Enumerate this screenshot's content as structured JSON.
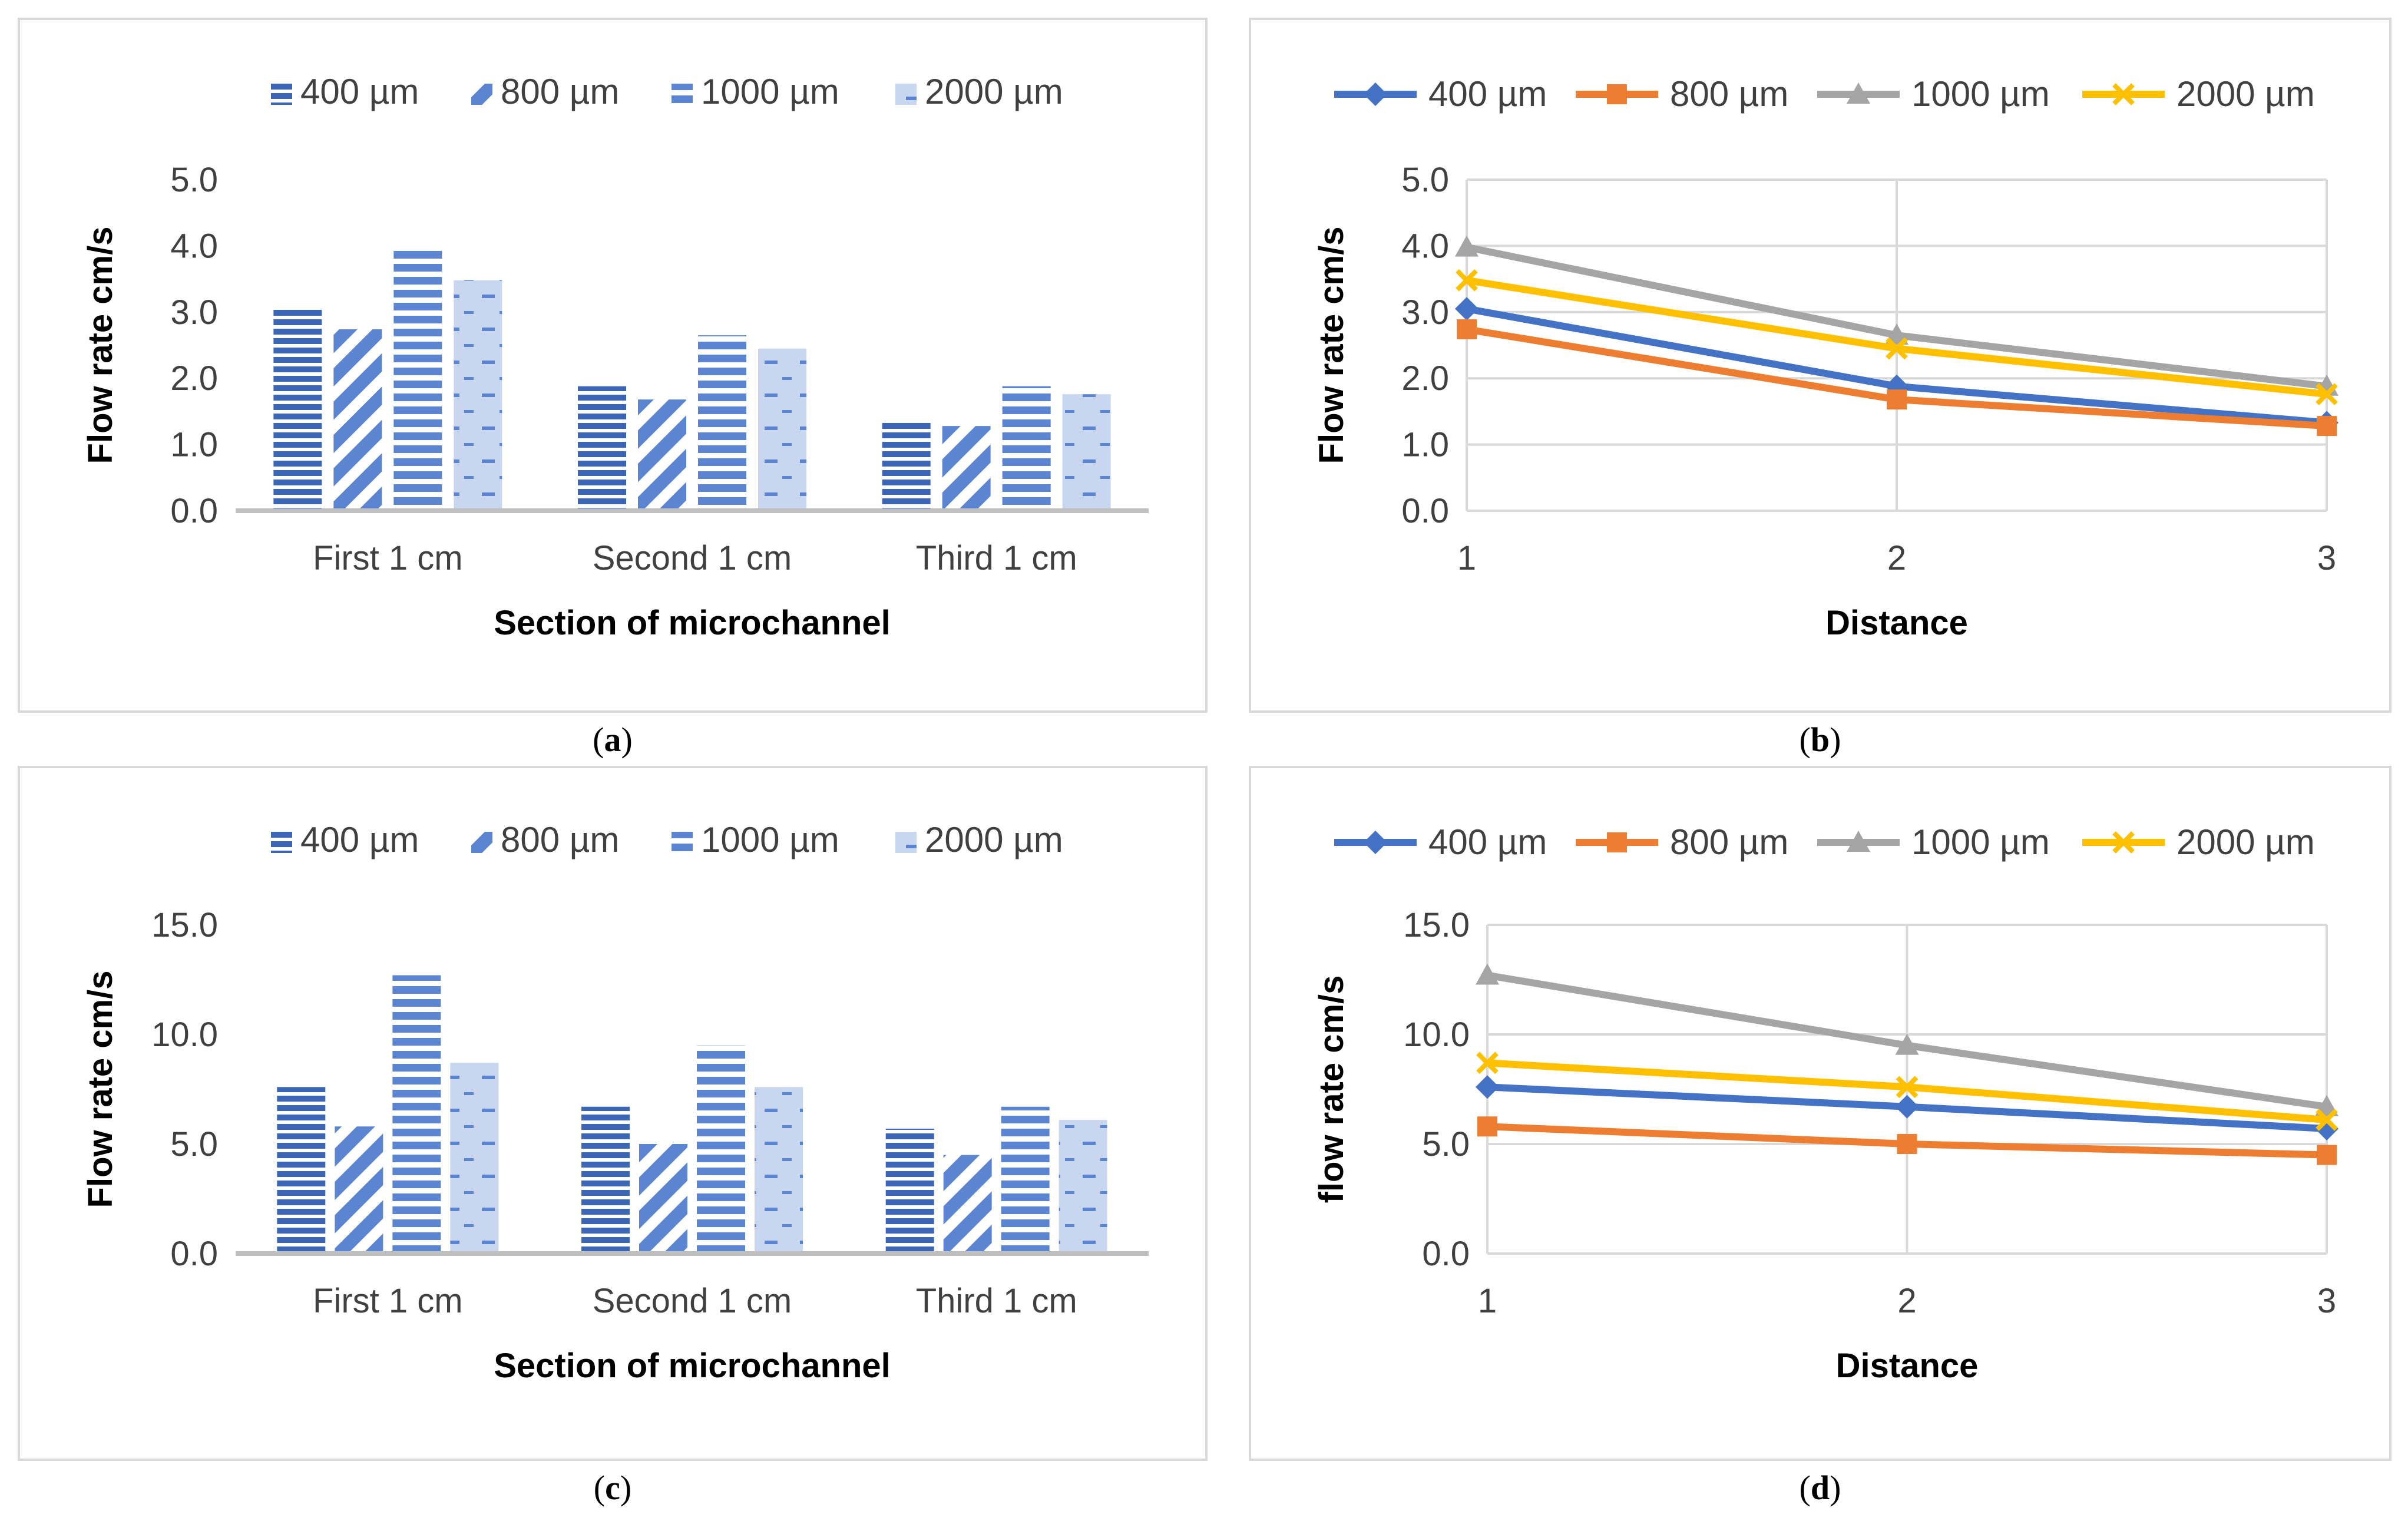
{
  "series_names": [
    "400 µm",
    "800 µm",
    "1000 µm",
    "2000 µm"
  ],
  "line_colors": [
    "#4472c4",
    "#ed7d31",
    "#a5a5a5",
    "#ffc000"
  ],
  "bar_colors": [
    "#3b66b6",
    "#5b85d0",
    "#5b85d0",
    "#c9d6ef"
  ],
  "captions": {
    "a": "a",
    "b": "b",
    "c": "c",
    "d": "d"
  },
  "chart_data": [
    {
      "type": "bar",
      "panel": "a",
      "title": "",
      "categories": [
        "First 1 cm",
        "Second 1 cm",
        "Third 1 cm"
      ],
      "series": [
        {
          "name": "400 µm",
          "values": [
            3.05,
            1.88,
            1.33
          ]
        },
        {
          "name": "800 µm",
          "values": [
            2.74,
            1.68,
            1.28
          ]
        },
        {
          "name": "1000 µm",
          "values": [
            3.98,
            2.65,
            1.88
          ]
        },
        {
          "name": "2000 µm",
          "values": [
            3.48,
            2.45,
            1.76
          ]
        }
      ],
      "xlabel": "Section of microchannel",
      "ylabel": "Flow rate cm/s",
      "ylim": [
        0,
        5
      ],
      "yticks": [
        "0.0",
        "1.0",
        "2.0",
        "3.0",
        "4.0",
        "5.0"
      ],
      "legend": "top"
    },
    {
      "type": "line",
      "panel": "b",
      "title": "",
      "x": [
        1,
        2,
        3
      ],
      "xticks": [
        "1",
        "2",
        "3"
      ],
      "series": [
        {
          "name": "400 µm",
          "values": [
            3.05,
            1.88,
            1.33
          ]
        },
        {
          "name": "800 µm",
          "values": [
            2.74,
            1.68,
            1.28
          ]
        },
        {
          "name": "1000 µm",
          "values": [
            3.98,
            2.65,
            1.88
          ]
        },
        {
          "name": "2000 µm",
          "values": [
            3.48,
            2.45,
            1.76
          ]
        }
      ],
      "xlabel": "Distance",
      "ylabel": "Flow rate cm/s",
      "ylim": [
        0,
        5
      ],
      "yticks": [
        "0.0",
        "1.0",
        "2.0",
        "3.0",
        "4.0",
        "5.0"
      ],
      "grid": true,
      "legend": "top"
    },
    {
      "type": "bar",
      "panel": "c",
      "title": "",
      "categories": [
        "First 1 cm",
        "Second 1 cm",
        "Third 1 cm"
      ],
      "series": [
        {
          "name": "400 µm",
          "values": [
            7.6,
            6.7,
            5.7
          ]
        },
        {
          "name": "800 µm",
          "values": [
            5.8,
            5.0,
            4.5
          ]
        },
        {
          "name": "1000 µm",
          "values": [
            12.7,
            9.5,
            6.7
          ]
        },
        {
          "name": "2000 µm",
          "values": [
            8.7,
            7.6,
            6.1
          ]
        }
      ],
      "xlabel": "Section of microchannel",
      "ylabel": "Flow rate cm/s",
      "ylim": [
        0,
        15
      ],
      "yticks": [
        "0.0",
        "5.0",
        "10.0",
        "15.0"
      ],
      "legend": "top"
    },
    {
      "type": "line",
      "panel": "d",
      "title": "",
      "x": [
        1,
        2,
        3
      ],
      "xticks": [
        "1",
        "2",
        "3"
      ],
      "series": [
        {
          "name": "400 µm",
          "values": [
            7.6,
            6.7,
            5.7
          ]
        },
        {
          "name": "800 µm",
          "values": [
            5.8,
            5.0,
            4.5
          ]
        },
        {
          "name": "1000 µm",
          "values": [
            12.7,
            9.5,
            6.7
          ]
        },
        {
          "name": "2000 µm",
          "values": [
            8.7,
            7.6,
            6.1
          ]
        }
      ],
      "xlabel": "Distance",
      "ylabel": "flow rate cm/s",
      "ylim": [
        0,
        15
      ],
      "yticks": [
        "0.0",
        "5.0",
        "10.0",
        "15.0"
      ],
      "grid": true,
      "legend": "top"
    }
  ]
}
